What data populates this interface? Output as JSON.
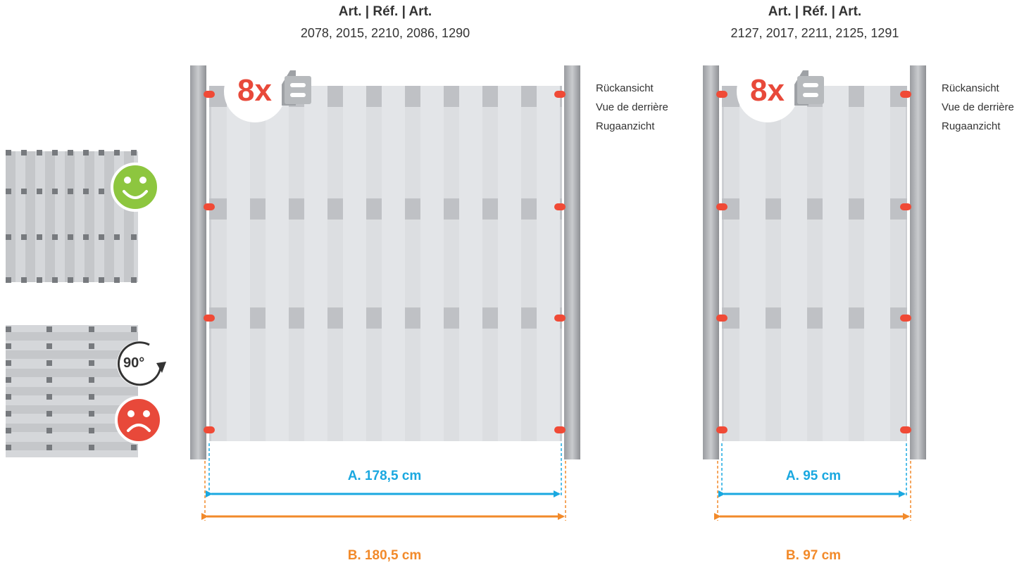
{
  "panels": [
    {
      "art_title": "Art. | Réf. | Art.",
      "art_numbers": "2078, 2015, 2210, 2086, 1290",
      "views": [
        "Rückansicht",
        "Vue de derrière",
        "Rugaanzicht"
      ],
      "bracket_count": "8x",
      "measure_a": "A. 178,5 cm",
      "measure_b": "B. 180,5 cm"
    },
    {
      "art_title": "Art. | Réf. | Art.",
      "art_numbers": "2127, 2017, 2211, 2125, 1291",
      "views": [
        "Rückansicht",
        "Vue de derrière",
        "Rugaanzicht"
      ],
      "bracket_count": "8x",
      "measure_a": "A. 95 cm",
      "measure_b": "B. 97 cm"
    }
  ],
  "orientation": {
    "rotation_label": "90°",
    "correct_icon": "happy-face-icon",
    "wrong_icon": "sad-face-icon"
  },
  "colors": {
    "measure_a": "#1aa8e0",
    "measure_b": "#f28a2a",
    "bracket": "#e8493a",
    "happy": "#8dc63f",
    "sad": "#e8493a"
  }
}
